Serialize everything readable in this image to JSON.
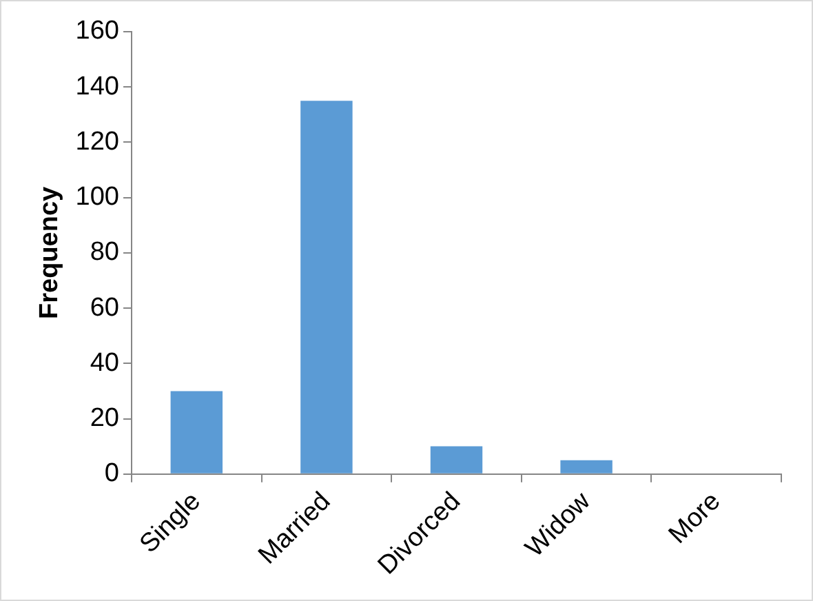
{
  "chart_data": {
    "type": "bar",
    "ylabel": "Frequency",
    "categories": [
      "Single",
      "Married",
      "Divorced",
      "Widow",
      "More"
    ],
    "values": [
      30,
      135,
      10,
      5,
      0
    ],
    "color": "#5b9bd5",
    "ylim": [
      0,
      160
    ],
    "yticks": [
      0,
      20,
      40,
      60,
      80,
      100,
      120,
      140,
      160
    ],
    "grid": false,
    "legend": false
  }
}
